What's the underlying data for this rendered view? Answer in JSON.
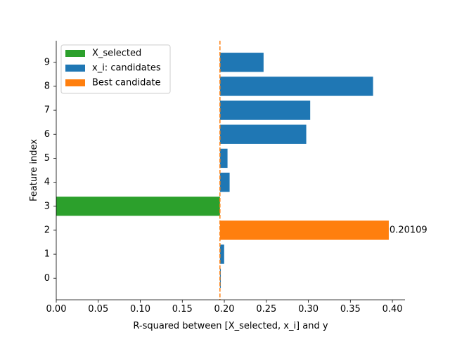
{
  "chart_data": {
    "type": "bar",
    "orientation": "horizontal",
    "xlabel": "R-squared between [X_selected, x_i] and y",
    "ylabel": "Feature index",
    "xlim": [
      0.0,
      0.415
    ],
    "ylim": [
      -0.9,
      9.9
    ],
    "xticks": [
      "0.00",
      "0.05",
      "0.10",
      "0.15",
      "0.20",
      "0.25",
      "0.30",
      "0.35",
      "0.40"
    ],
    "xtick_values": [
      0.0,
      0.05,
      0.1,
      0.15,
      0.2,
      0.25,
      0.3,
      0.35,
      0.4
    ],
    "yticks": [
      "0",
      "1",
      "2",
      "3",
      "4",
      "5",
      "6",
      "7",
      "8",
      "9"
    ],
    "reference_line": {
      "x": 0.1948,
      "style": "dashed",
      "color": "#ff7f0e"
    },
    "bars": [
      {
        "index": 0,
        "left": 0.1948,
        "right": 0.1958,
        "group": "candidate"
      },
      {
        "index": 1,
        "left": 0.1948,
        "right": 0.1998,
        "group": "candidate"
      },
      {
        "index": 2,
        "left": 0.1948,
        "right": 0.3957,
        "group": "best"
      },
      {
        "index": 3,
        "left": 0.0,
        "right": 0.1948,
        "group": "selected"
      },
      {
        "index": 4,
        "left": 0.1948,
        "right": 0.2063,
        "group": "candidate"
      },
      {
        "index": 5,
        "left": 0.1948,
        "right": 0.2038,
        "group": "candidate"
      },
      {
        "index": 6,
        "left": 0.1948,
        "right": 0.2975,
        "group": "candidate"
      },
      {
        "index": 7,
        "left": 0.1948,
        "right": 0.3022,
        "group": "candidate"
      },
      {
        "index": 8,
        "left": 0.1948,
        "right": 0.377,
        "group": "candidate"
      },
      {
        "index": 9,
        "left": 0.1948,
        "right": 0.2467,
        "group": "candidate"
      }
    ],
    "annotation": {
      "index": 2,
      "text": "0.20109"
    },
    "legend": {
      "placement": "upper-left",
      "entries": [
        {
          "label": "X_selected",
          "color": "#2ca02c",
          "group": "selected"
        },
        {
          "label": "x_i: candidates",
          "color": "#1f77b4",
          "group": "candidate"
        },
        {
          "label": "Best candidate",
          "color": "#ff7f0e",
          "group": "best"
        }
      ]
    },
    "colors": {
      "selected": "#2ca02c",
      "candidate": "#1f77b4",
      "best": "#ff7f0e"
    }
  }
}
